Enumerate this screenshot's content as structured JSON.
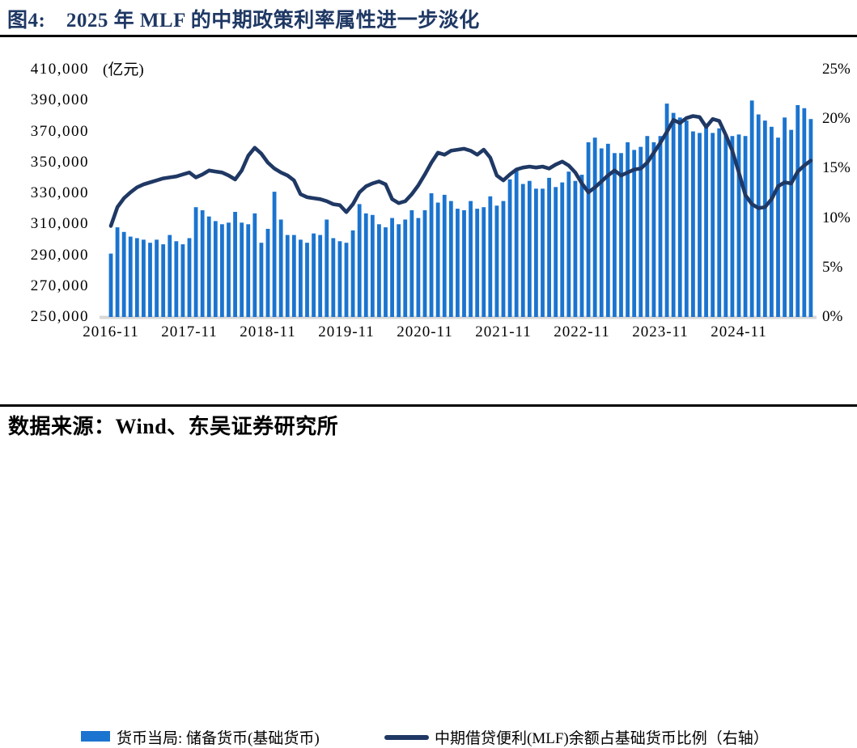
{
  "figure": {
    "title": "图4:　2025 年 MLF 的中期政策利率属性进一步淡化",
    "title_color": "#1F3864",
    "source": "数据来源：Wind、东吴证券研究所",
    "rule_color": "#000000",
    "baseline_color": "#D8D8D8"
  },
  "legend": [
    {
      "type": "bar",
      "label": "货币当局: 储备货币(基础货币)",
      "color": "#1B74CF"
    },
    {
      "type": "line",
      "label": "中期借贷便利(MLF)余额占基础货币比例（右轴）",
      "color": "#1F3864"
    }
  ],
  "chart_data": {
    "type": "bar+line combo",
    "title": "2025 年 MLF 的中期政策利率属性进一步淡化",
    "grid": "off",
    "left_axis": {
      "label": "(亿元)",
      "min": 250000,
      "max": 410000,
      "ticks": [
        "410,000",
        "390,000",
        "370,000",
        "350,000",
        "330,000",
        "310,000",
        "290,000",
        "270,000",
        "250,000"
      ]
    },
    "right_axis": {
      "min": 0,
      "max": 25,
      "ticks": [
        "25%",
        "20%",
        "15%",
        "10%",
        "5%",
        "0%"
      ]
    },
    "x_axis": {
      "tick_labels": [
        "2016-11",
        "2017-11",
        "2018-11",
        "2019-11",
        "2020-11",
        "2021-11",
        "2022-11",
        "2023-11",
        "2024-11"
      ]
    },
    "x": [
      "2016-11",
      "2016-12",
      "2017-01",
      "2017-02",
      "2017-03",
      "2017-04",
      "2017-05",
      "2017-06",
      "2017-07",
      "2017-08",
      "2017-09",
      "2017-10",
      "2017-11",
      "2017-12",
      "2018-01",
      "2018-02",
      "2018-03",
      "2018-04",
      "2018-05",
      "2018-06",
      "2018-07",
      "2018-08",
      "2018-09",
      "2018-10",
      "2018-11",
      "2018-12",
      "2019-01",
      "2019-02",
      "2019-03",
      "2019-04",
      "2019-05",
      "2019-06",
      "2019-07",
      "2019-08",
      "2019-09",
      "2019-10",
      "2019-11",
      "2019-12",
      "2020-01",
      "2020-02",
      "2020-03",
      "2020-04",
      "2020-05",
      "2020-06",
      "2020-07",
      "2020-08",
      "2020-09",
      "2020-10",
      "2020-11",
      "2020-12",
      "2021-01",
      "2021-02",
      "2021-03",
      "2021-04",
      "2021-05",
      "2021-06",
      "2021-07",
      "2021-08",
      "2021-09",
      "2021-10",
      "2021-11",
      "2021-12",
      "2022-01",
      "2022-02",
      "2022-03",
      "2022-04",
      "2022-05",
      "2022-06",
      "2022-07",
      "2022-08",
      "2022-09",
      "2022-10",
      "2022-11",
      "2022-12",
      "2023-01",
      "2023-02",
      "2023-03",
      "2023-04",
      "2023-05",
      "2023-06",
      "2023-07",
      "2023-08",
      "2023-09",
      "2023-10",
      "2023-11",
      "2023-12",
      "2024-01",
      "2024-02",
      "2024-03",
      "2024-04",
      "2024-05",
      "2024-06",
      "2024-07",
      "2024-08",
      "2024-09",
      "2024-10",
      "2024-11",
      "2024-12",
      "2025-01",
      "2025-02",
      "2025-03",
      "2025-04",
      "2025-05",
      "2025-06",
      "2025-07",
      "2025-08",
      "2025-09",
      "2025-10"
    ],
    "series": [
      {
        "name": "货币当局: 储备货币(基础货币)",
        "type": "bar",
        "axis": "left",
        "color": "#1B74CF",
        "values": [
          291000,
          308000,
          305000,
          302000,
          301000,
          300000,
          298000,
          300000,
          297000,
          303000,
          299000,
          297000,
          301000,
          321000,
          319000,
          315000,
          312000,
          310000,
          311000,
          318000,
          311000,
          310000,
          317000,
          298000,
          307000,
          331000,
          313000,
          303000,
          303000,
          300000,
          298000,
          304000,
          303000,
          313000,
          301000,
          299000,
          298000,
          306000,
          323000,
          317000,
          316000,
          310000,
          308000,
          314000,
          310000,
          313000,
          319000,
          314000,
          319000,
          330000,
          324000,
          329000,
          325000,
          320000,
          319000,
          325000,
          320000,
          321000,
          328000,
          322000,
          325000,
          339000,
          346000,
          336000,
          338000,
          333000,
          333000,
          340000,
          334000,
          337000,
          344000,
          338000,
          342000,
          363000,
          366000,
          359000,
          362000,
          356000,
          356000,
          363000,
          358000,
          360000,
          367000,
          363000,
          367000,
          388000,
          382000,
          379000,
          377000,
          370000,
          369000,
          375000,
          369000,
          372000,
          368000,
          367000,
          368000,
          367000,
          390000,
          381000,
          377000,
          373000,
          366000,
          379000,
          371000,
          387000,
          385000,
          378000
        ]
      },
      {
        "name": "中期借贷便利(MLF)余额占基础货币比例（右轴）",
        "type": "line",
        "axis": "right",
        "color": "#1F3864",
        "values": [
          9.2,
          11.1,
          12.0,
          12.6,
          13.1,
          13.4,
          13.6,
          13.8,
          14.0,
          14.1,
          14.2,
          14.4,
          14.6,
          14.1,
          14.4,
          14.8,
          14.7,
          14.6,
          14.3,
          13.9,
          14.8,
          16.3,
          17.1,
          16.5,
          15.6,
          15.0,
          14.6,
          14.3,
          13.8,
          12.4,
          12.1,
          12.0,
          11.9,
          11.7,
          11.4,
          11.3,
          10.6,
          11.4,
          12.6,
          13.2,
          13.5,
          13.7,
          13.4,
          11.9,
          11.5,
          11.7,
          12.4,
          13.3,
          14.4,
          15.6,
          16.6,
          16.4,
          16.8,
          16.9,
          17.0,
          16.8,
          16.4,
          16.9,
          16.1,
          14.3,
          13.8,
          14.4,
          14.9,
          15.1,
          15.2,
          15.1,
          15.2,
          15.0,
          15.4,
          15.7,
          15.3,
          14.6,
          13.5,
          12.6,
          13.1,
          13.7,
          14.3,
          14.8,
          14.3,
          14.6,
          14.9,
          15.0,
          15.6,
          16.6,
          17.6,
          18.7,
          19.9,
          19.6,
          20.1,
          20.3,
          20.2,
          19.2,
          20.0,
          19.8,
          18.4,
          16.8,
          14.6,
          12.3,
          11.4,
          11.0,
          11.1,
          11.9,
          13.2,
          13.6,
          13.5,
          14.7,
          15.3,
          15.8
        ]
      }
    ]
  }
}
